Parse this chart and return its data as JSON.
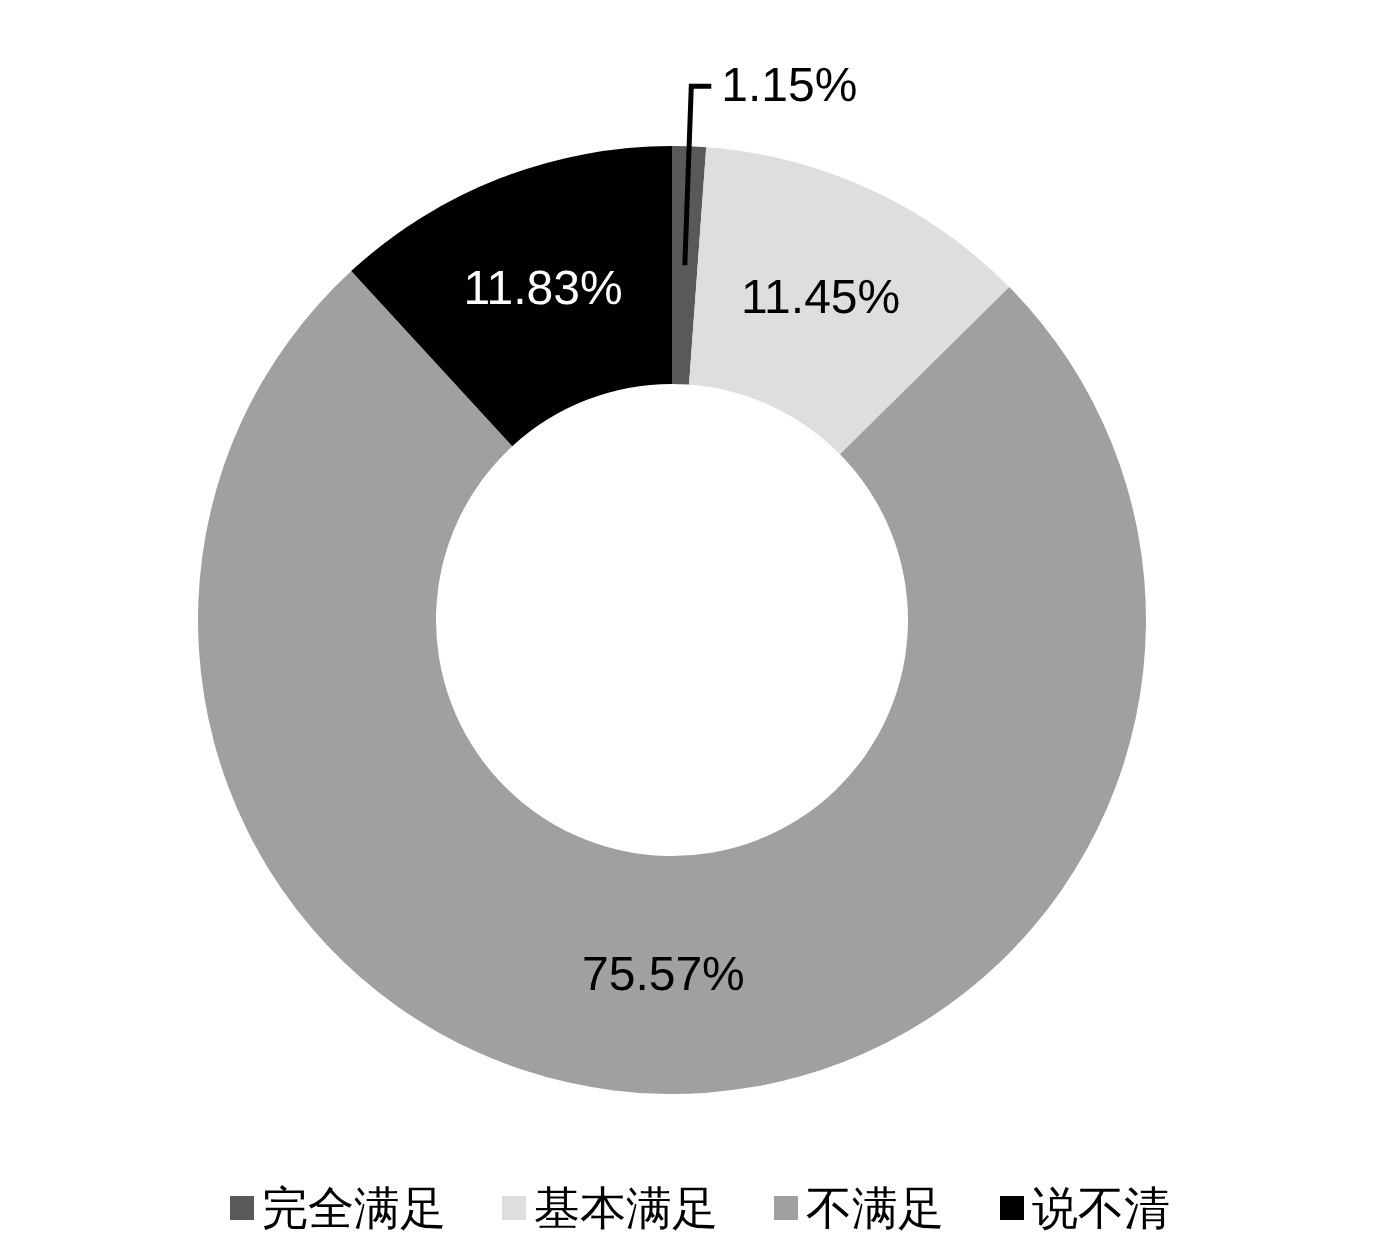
{
  "chart_data": {
    "type": "donut",
    "categories": [
      "完全满足",
      "基本满足",
      "不满足",
      "说不清"
    ],
    "values": [
      1.15,
      11.45,
      75.57,
      11.83
    ],
    "colors": [
      "#595959",
      "#dedede",
      "#a0a0a0",
      "#000000"
    ],
    "value_labels": [
      "1.15%",
      "11.45%",
      "75.57%",
      "11.83%"
    ],
    "legend": "bottom"
  }
}
